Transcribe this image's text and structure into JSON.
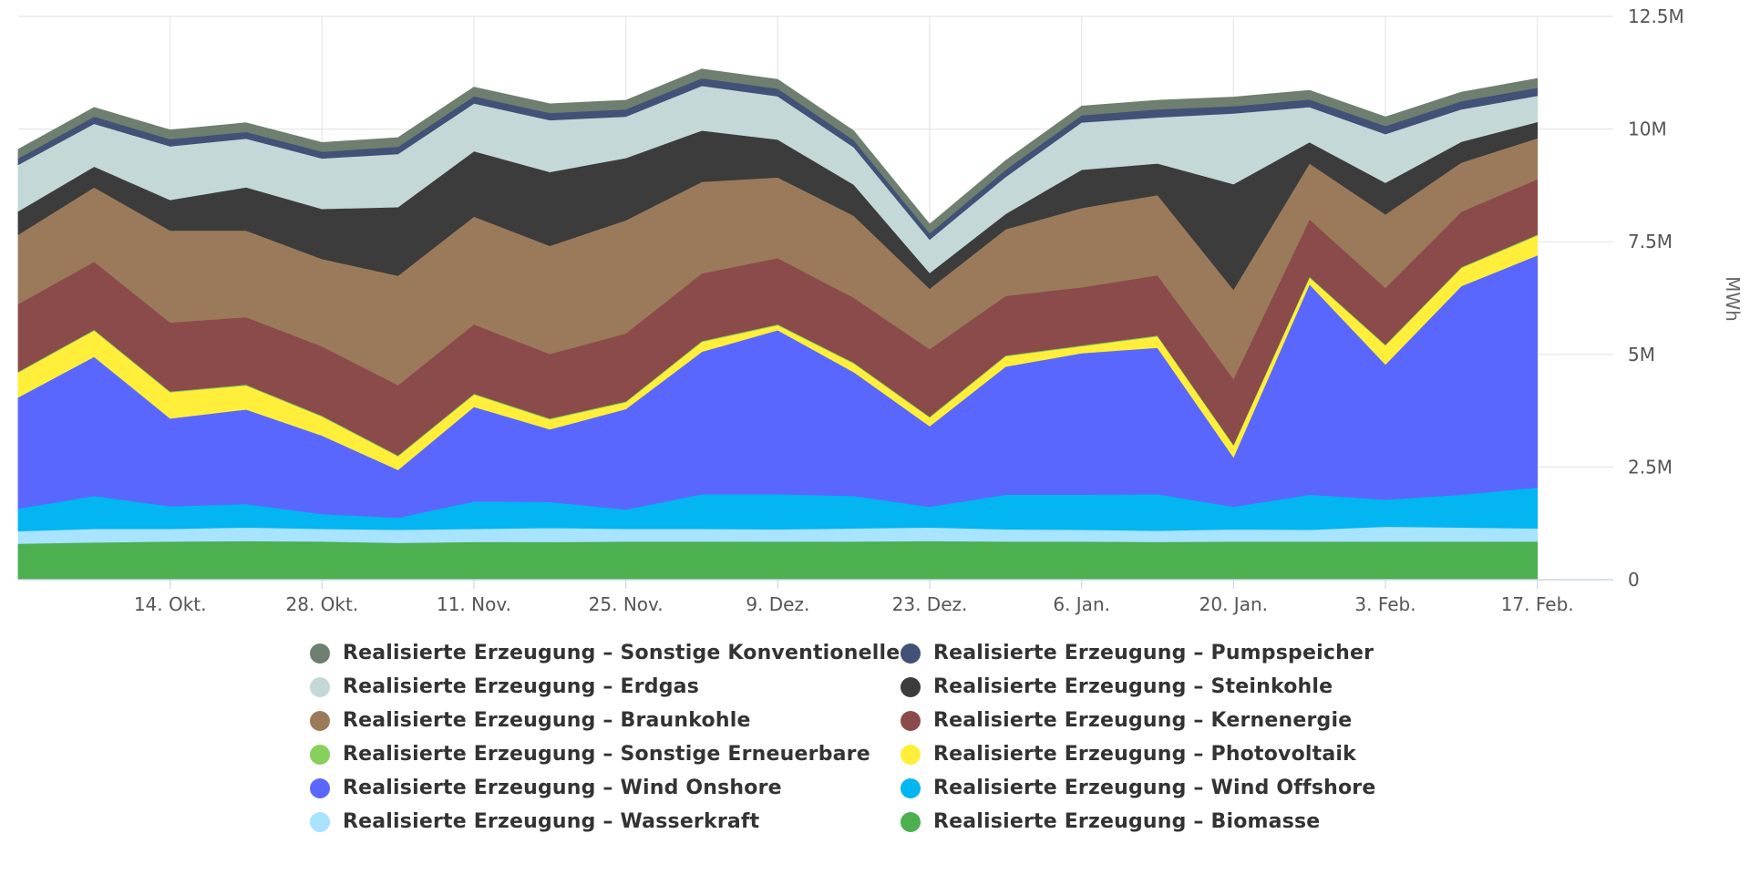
{
  "chart_data": {
    "type": "area",
    "stacked": true,
    "ylabel": "MWh",
    "ylim": [
      0,
      12500000
    ],
    "yticks": [
      {
        "value": 0,
        "label": "0"
      },
      {
        "value": 2500000,
        "label": "2.5M"
      },
      {
        "value": 5000000,
        "label": "5M"
      },
      {
        "value": 7500000,
        "label": "7.5M"
      },
      {
        "value": 10000000,
        "label": "10M"
      },
      {
        "value": 12500000,
        "label": "12.5M"
      }
    ],
    "x": [
      "2024-09-30",
      "2024-10-07",
      "2024-10-14",
      "2024-10-21",
      "2024-10-28",
      "2024-11-04",
      "2024-11-11",
      "2024-11-18",
      "2024-11-25",
      "2024-12-02",
      "2024-12-09",
      "2024-12-16",
      "2024-12-23",
      "2024-12-30",
      "2025-01-06",
      "2025-01-13",
      "2025-01-20",
      "2025-01-27",
      "2025-02-03",
      "2025-02-10",
      "2025-02-17"
    ],
    "xlim": [
      "2024-09-30",
      "2025-02-24"
    ],
    "xticks": [
      {
        "date": "2024-10-14",
        "label": "14. Okt."
      },
      {
        "date": "2024-10-28",
        "label": "28. Okt."
      },
      {
        "date": "2024-11-11",
        "label": "11. Nov."
      },
      {
        "date": "2024-11-25",
        "label": "25. Nov."
      },
      {
        "date": "2024-12-09",
        "label": "9. Dez."
      },
      {
        "date": "2024-12-23",
        "label": "23. Dez."
      },
      {
        "date": "2025-01-06",
        "label": "6. Jan."
      },
      {
        "date": "2025-01-20",
        "label": "20. Jan."
      },
      {
        "date": "2025-02-03",
        "label": "3. Feb."
      },
      {
        "date": "2025-02-17",
        "label": "17. Feb."
      }
    ],
    "grid": true,
    "legend_position": "bottom",
    "series": [
      {
        "name": "Realisierte Erzeugung – Biomasse",
        "color": "#4caf50",
        "values": [
          800000,
          830000,
          850000,
          860000,
          850000,
          820000,
          840000,
          840000,
          850000,
          850000,
          850000,
          850000,
          860000,
          850000,
          850000,
          840000,
          850000,
          850000,
          850000,
          850000,
          850000
        ]
      },
      {
        "name": "Realisierte Erzeugung – Wasserkraft",
        "color": "#a8e3ff",
        "values": [
          280000,
          300000,
          280000,
          300000,
          280000,
          290000,
          290000,
          310000,
          280000,
          280000,
          270000,
          290000,
          300000,
          270000,
          260000,
          250000,
          270000,
          260000,
          330000,
          310000,
          290000
        ]
      },
      {
        "name": "Realisierte Erzeugung – Wind Offshore",
        "color": "#03b5f0",
        "values": [
          500000,
          730000,
          500000,
          520000,
          330000,
          270000,
          610000,
          580000,
          430000,
          770000,
          780000,
          720000,
          460000,
          770000,
          780000,
          810000,
          500000,
          780000,
          600000,
          730000,
          910000
        ]
      },
      {
        "name": "Realisierte Erzeugung – Wind Onshore",
        "color": "#5a67ff",
        "values": [
          2470000,
          3090000,
          1950000,
          2100000,
          1740000,
          1060000,
          2100000,
          1610000,
          2230000,
          3160000,
          3640000,
          2750000,
          1790000,
          2840000,
          3140000,
          3250000,
          1100000,
          4670000,
          3000000,
          4630000,
          5150000
        ]
      },
      {
        "name": "Realisierte Erzeugung – Photovoltaik",
        "color": "#ffef3a",
        "values": [
          550000,
          580000,
          580000,
          530000,
          420000,
          300000,
          270000,
          220000,
          150000,
          220000,
          110000,
          190000,
          190000,
          230000,
          150000,
          250000,
          260000,
          150000,
          420000,
          400000,
          440000
        ]
      },
      {
        "name": "Realisierte Erzeugung – Sonstige Erneuerbare",
        "color": "#86d15c",
        "values": [
          20000,
          20000,
          20000,
          20000,
          20000,
          20000,
          20000,
          20000,
          20000,
          20000,
          20000,
          20000,
          20000,
          20000,
          20000,
          20000,
          20000,
          20000,
          20000,
          20000,
          20000
        ]
      },
      {
        "name": "Realisierte Erzeugung – Kernenergie",
        "color": "#8c4b4b",
        "values": [
          1500000,
          1510000,
          1530000,
          1500000,
          1540000,
          1560000,
          1540000,
          1430000,
          1510000,
          1500000,
          1470000,
          1440000,
          1500000,
          1320000,
          1290000,
          1340000,
          1460000,
          1270000,
          1260000,
          1230000,
          1230000
        ]
      },
      {
        "name": "Realisierte Erzeugung – Braunkohle",
        "color": "#9b7a5c",
        "values": [
          1540000,
          1650000,
          2040000,
          1920000,
          1940000,
          2430000,
          2390000,
          2400000,
          2510000,
          2030000,
          1790000,
          1820000,
          1340000,
          1480000,
          1760000,
          1780000,
          1980000,
          1240000,
          1630000,
          1090000,
          910000
        ]
      },
      {
        "name": "Realisierte Erzeugung – Steinkohle",
        "color": "#3c3c3c",
        "values": [
          520000,
          460000,
          680000,
          960000,
          1110000,
          1520000,
          1450000,
          1640000,
          1380000,
          1140000,
          840000,
          690000,
          350000,
          340000,
          850000,
          700000,
          2340000,
          470000,
          700000,
          460000,
          360000
        ]
      },
      {
        "name": "Realisierte Erzeugung – Erdgas",
        "color": "#c5d8d8",
        "values": [
          1030000,
          950000,
          1190000,
          1080000,
          1120000,
          1180000,
          1060000,
          1150000,
          920000,
          990000,
          960000,
          830000,
          740000,
          820000,
          1050000,
          1020000,
          1570000,
          780000,
          1080000,
          720000,
          580000
        ]
      },
      {
        "name": "Realisierte Erzeugung – Pumpspeicher",
        "color": "#425177",
        "values": [
          140000,
          160000,
          160000,
          150000,
          150000,
          160000,
          160000,
          160000,
          160000,
          170000,
          170000,
          160000,
          140000,
          160000,
          160000,
          180000,
          160000,
          170000,
          180000,
          180000,
          180000
        ]
      },
      {
        "name": "Realisierte Erzeugung – Sonstige Konventionelle",
        "color": "#6f7f6f",
        "values": [
          200000,
          200000,
          200000,
          200000,
          200000,
          200000,
          200000,
          200000,
          200000,
          200000,
          200000,
          200000,
          200000,
          200000,
          200000,
          200000,
          200000,
          200000,
          200000,
          200000,
          200000
        ]
      }
    ]
  },
  "legend": {
    "items": [
      {
        "label": "Realisierte Erzeugung – Sonstige Konventionelle",
        "color": "#6f7f6f"
      },
      {
        "label": "Realisierte Erzeugung – Pumpspeicher",
        "color": "#425177"
      },
      {
        "label": "Realisierte Erzeugung – Erdgas",
        "color": "#c5d8d8"
      },
      {
        "label": "Realisierte Erzeugung – Steinkohle",
        "color": "#3c3c3c"
      },
      {
        "label": "Realisierte Erzeugung – Braunkohle",
        "color": "#9b7a5c"
      },
      {
        "label": "Realisierte Erzeugung – Kernenergie",
        "color": "#8c4b4b"
      },
      {
        "label": "Realisierte Erzeugung – Sonstige Erneuerbare",
        "color": "#86d15c"
      },
      {
        "label": "Realisierte Erzeugung – Photovoltaik",
        "color": "#ffef3a"
      },
      {
        "label": "Realisierte Erzeugung – Wind Onshore",
        "color": "#5a67ff"
      },
      {
        "label": "Realisierte Erzeugung – Wind Offshore",
        "color": "#03b5f0"
      },
      {
        "label": "Realisierte Erzeugung – Wasserkraft",
        "color": "#a8e3ff"
      },
      {
        "label": "Realisierte Erzeugung – Biomasse",
        "color": "#4caf50"
      }
    ]
  }
}
